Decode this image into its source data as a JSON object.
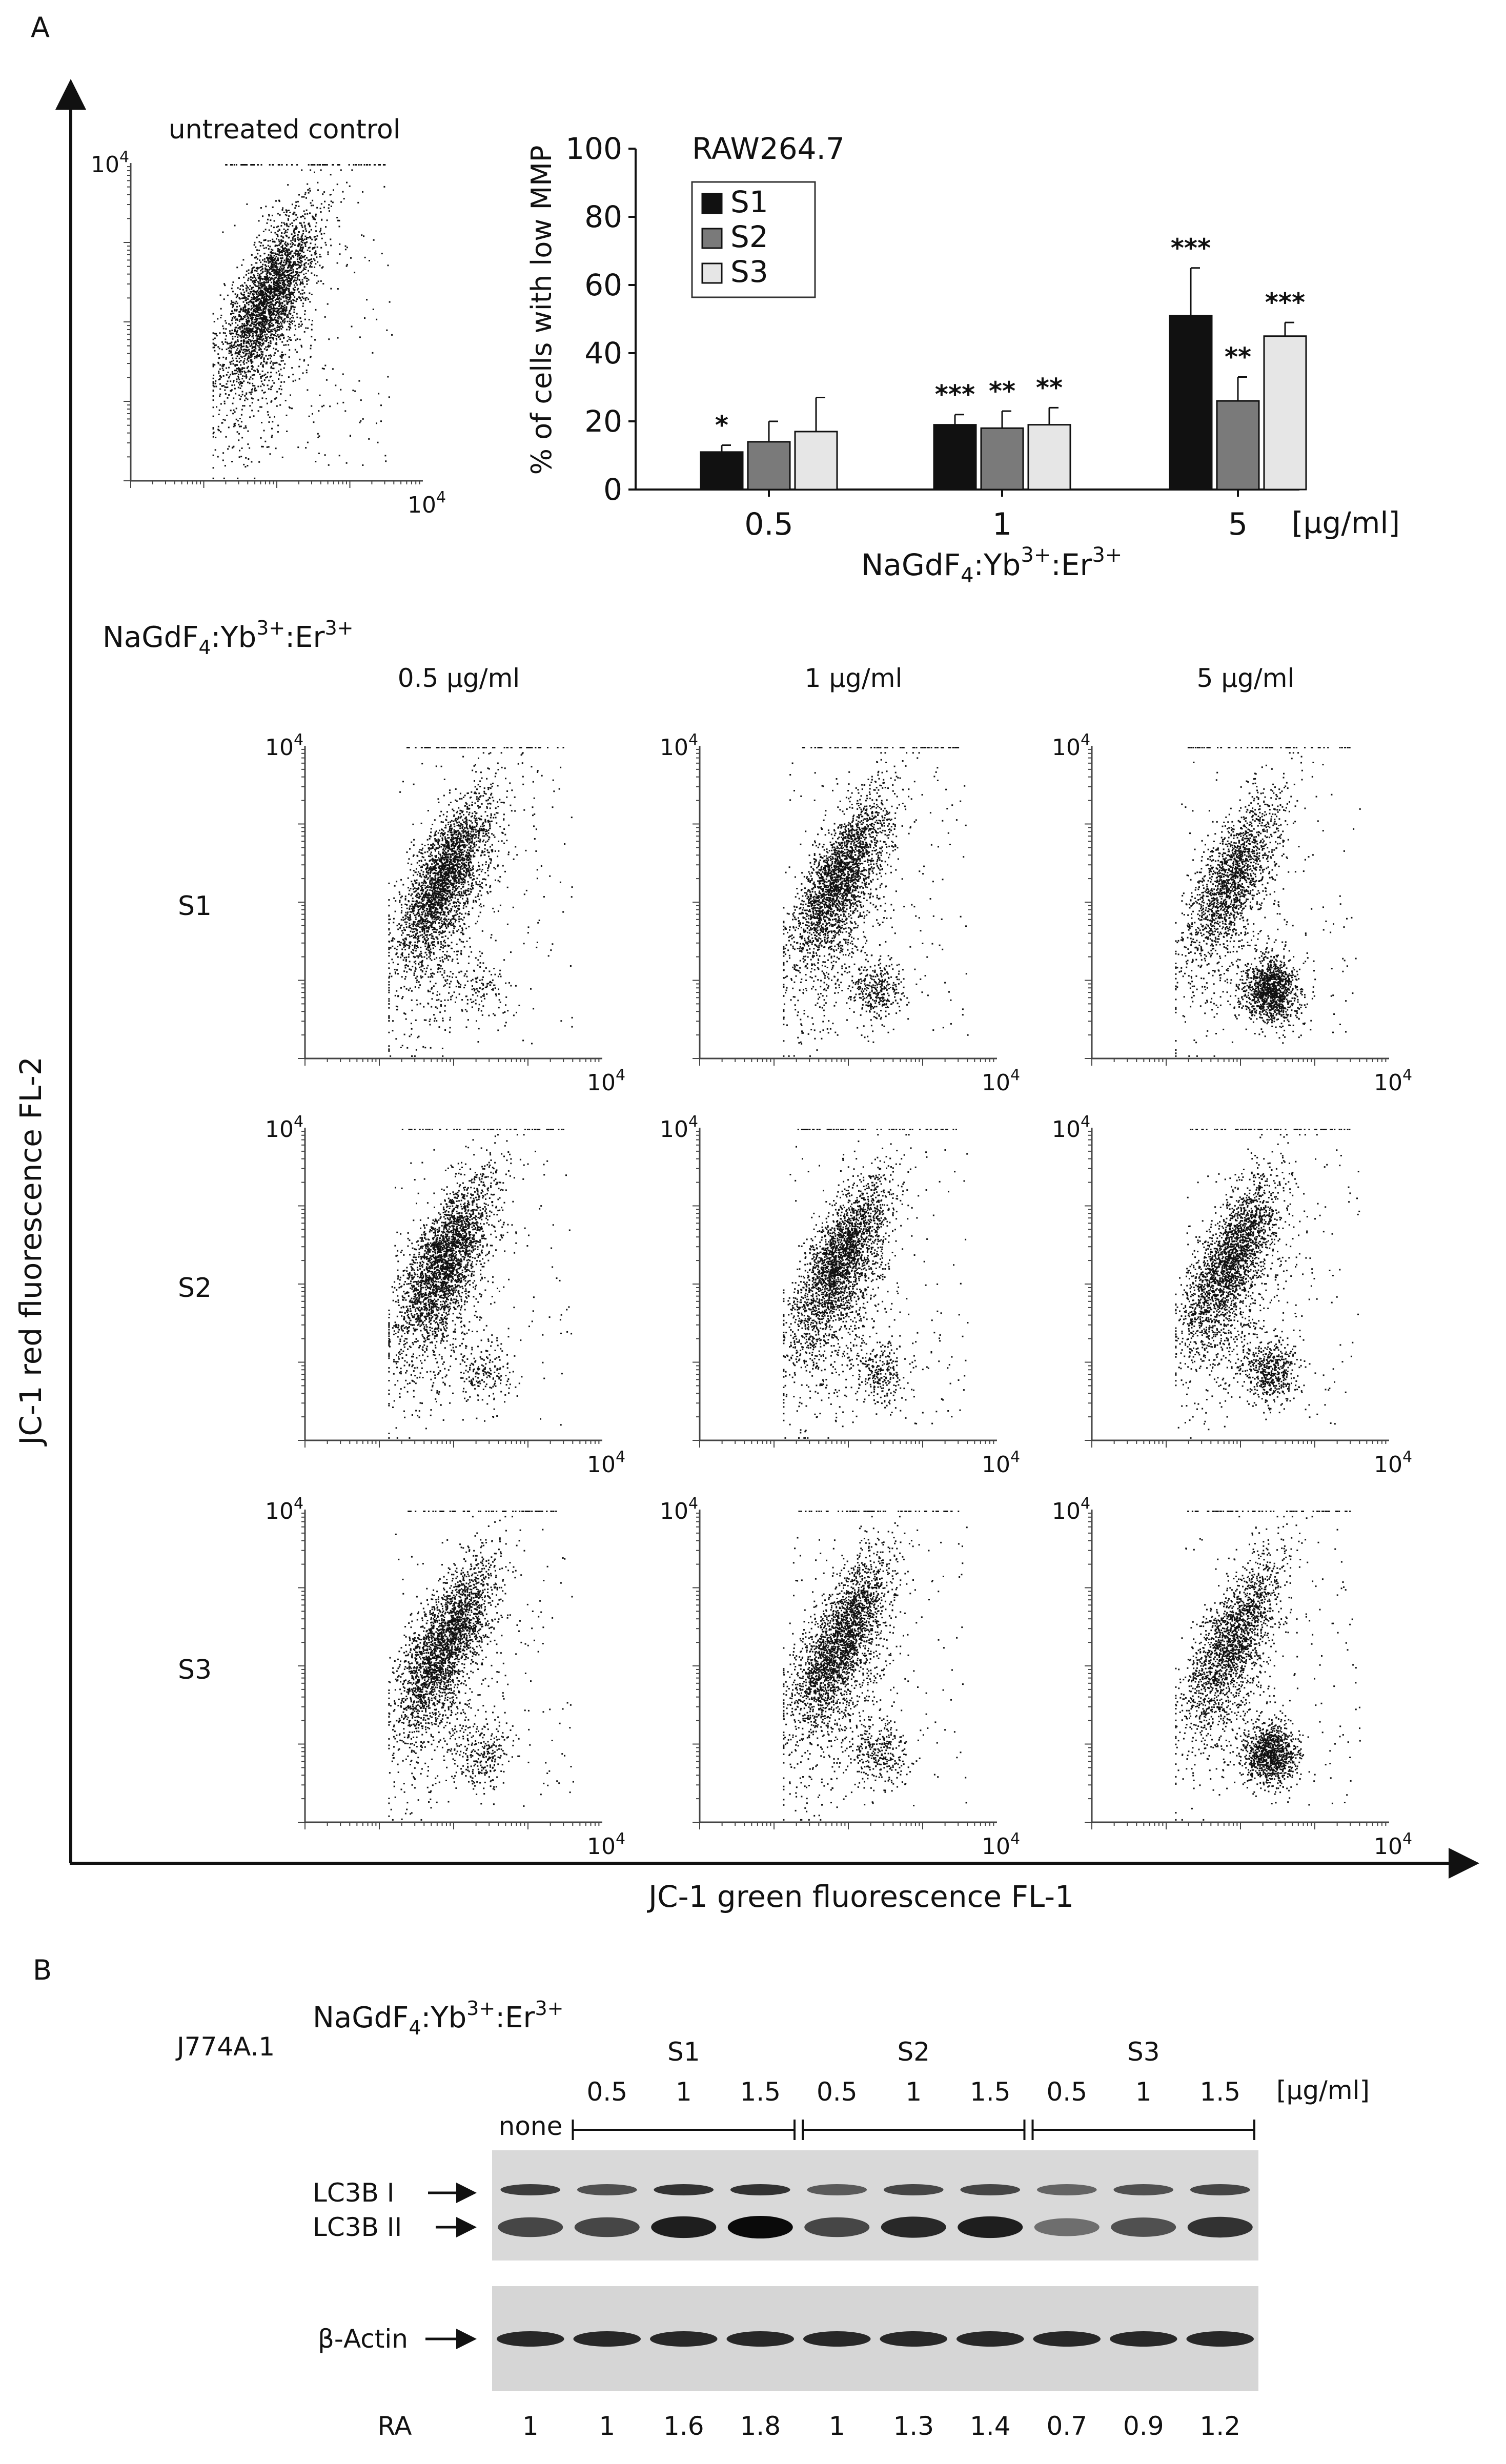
{
  "panel_a": {
    "label": "A",
    "y_axis_title": "JC-1 red fluorescence FL-2",
    "x_axis_title": "JC-1 green fluorescence FL-1",
    "control_title": "untreated control",
    "grid_title_compound": "NaGdF",
    "grid_title_sub": "4",
    "grid_title_rest": ":Yb",
    "grid_title_sup1": "3+",
    "grid_title_sep": ":Er",
    "grid_title_sup2": "3+",
    "dose_labels": [
      "0.5 µg/ml",
      "1 µg/ml",
      "5 µg/ml"
    ],
    "sample_labels": [
      "S1",
      "S2",
      "S3"
    ],
    "axis_max_base": "10",
    "axis_max_exp": "4",
    "scatter_data": {
      "untreated": {
        "low_mmp_fraction": 0.0
      },
      "grid": [
        [
          {
            "sample": "S1",
            "dose": "0.5",
            "low_mmp": 0.12
          },
          {
            "sample": "S1",
            "dose": "1",
            "low_mmp": 0.2
          },
          {
            "sample": "S1",
            "dose": "5",
            "low_mmp": 0.52
          }
        ],
        [
          {
            "sample": "S2",
            "dose": "0.5",
            "low_mmp": 0.14
          },
          {
            "sample": "S2",
            "dose": "1",
            "low_mmp": 0.18
          },
          {
            "sample": "S2",
            "dose": "5",
            "low_mmp": 0.26
          }
        ],
        [
          {
            "sample": "S3",
            "dose": "0.5",
            "low_mmp": 0.17
          },
          {
            "sample": "S3",
            "dose": "1",
            "low_mmp": 0.19
          },
          {
            "sample": "S3",
            "dose": "5",
            "low_mmp": 0.45
          }
        ]
      ]
    }
  },
  "chart_data": {
    "type": "bar",
    "title": "RAW264.7",
    "ylabel": "% of cells with low MMP",
    "xlabel_compound": "NaGdF",
    "xlabel_sub": "4",
    "xlabel_rest": ":Yb",
    "xlabel_sup1": "3+",
    "xlabel_sep": ":Er",
    "xlabel_sup2": "3+",
    "unit_label": "[µg/ml]",
    "categories": [
      "0.5",
      "1",
      "5"
    ],
    "ylim": [
      0,
      100
    ],
    "yticks": [
      "0",
      "20",
      "40",
      "60",
      "80",
      "100"
    ],
    "legend_position": "top-left",
    "series": [
      {
        "name": "S1",
        "color": "#111111",
        "values": [
          11,
          19,
          51
        ],
        "errors": [
          2,
          3,
          14
        ],
        "significance": [
          "*",
          "***",
          "***"
        ]
      },
      {
        "name": "S2",
        "color": "#7a7a7a",
        "values": [
          14,
          18,
          26
        ],
        "errors": [
          6,
          5,
          7
        ],
        "significance": [
          "",
          "**",
          "**"
        ]
      },
      {
        "name": "S3",
        "color": "#e6e6e6",
        "values": [
          17,
          19,
          45
        ],
        "errors": [
          10,
          5,
          4
        ],
        "significance": [
          "",
          "**",
          "***"
        ]
      }
    ]
  },
  "panel_b": {
    "label": "B",
    "cell_line": "J774A.1",
    "compound": "NaGdF",
    "compound_sub": "4",
    "compound_rest": ":Yb",
    "compound_sup1": "3+",
    "compound_sep": ":Er",
    "compound_sup2": "3+",
    "groups": [
      "S1",
      "S2",
      "S3"
    ],
    "doses": [
      "0.5",
      "1",
      "1.5",
      "0.5",
      "1",
      "1.5",
      "0.5",
      "1",
      "1.5"
    ],
    "unit_label": "[µg/ml]",
    "none_label": "none",
    "band_labels": [
      "LC3B I",
      "LC3B II",
      "β-Actin"
    ],
    "ra_label": "RA",
    "ra_values": [
      "1",
      "1",
      "1.6",
      "1.8",
      "1",
      "1.3",
      "1.4",
      "0.7",
      "0.9",
      "1.2"
    ],
    "band_intensity": {
      "lc3b_1": [
        0.75,
        0.65,
        0.8,
        0.8,
        0.6,
        0.7,
        0.7,
        0.55,
        0.65,
        0.7
      ],
      "lc3b_2": [
        0.7,
        0.7,
        0.9,
        1.0,
        0.7,
        0.85,
        0.9,
        0.5,
        0.65,
        0.8
      ],
      "actin": [
        0.85,
        0.85,
        0.85,
        0.85,
        0.85,
        0.85,
        0.85,
        0.85,
        0.85,
        0.85
      ]
    }
  }
}
